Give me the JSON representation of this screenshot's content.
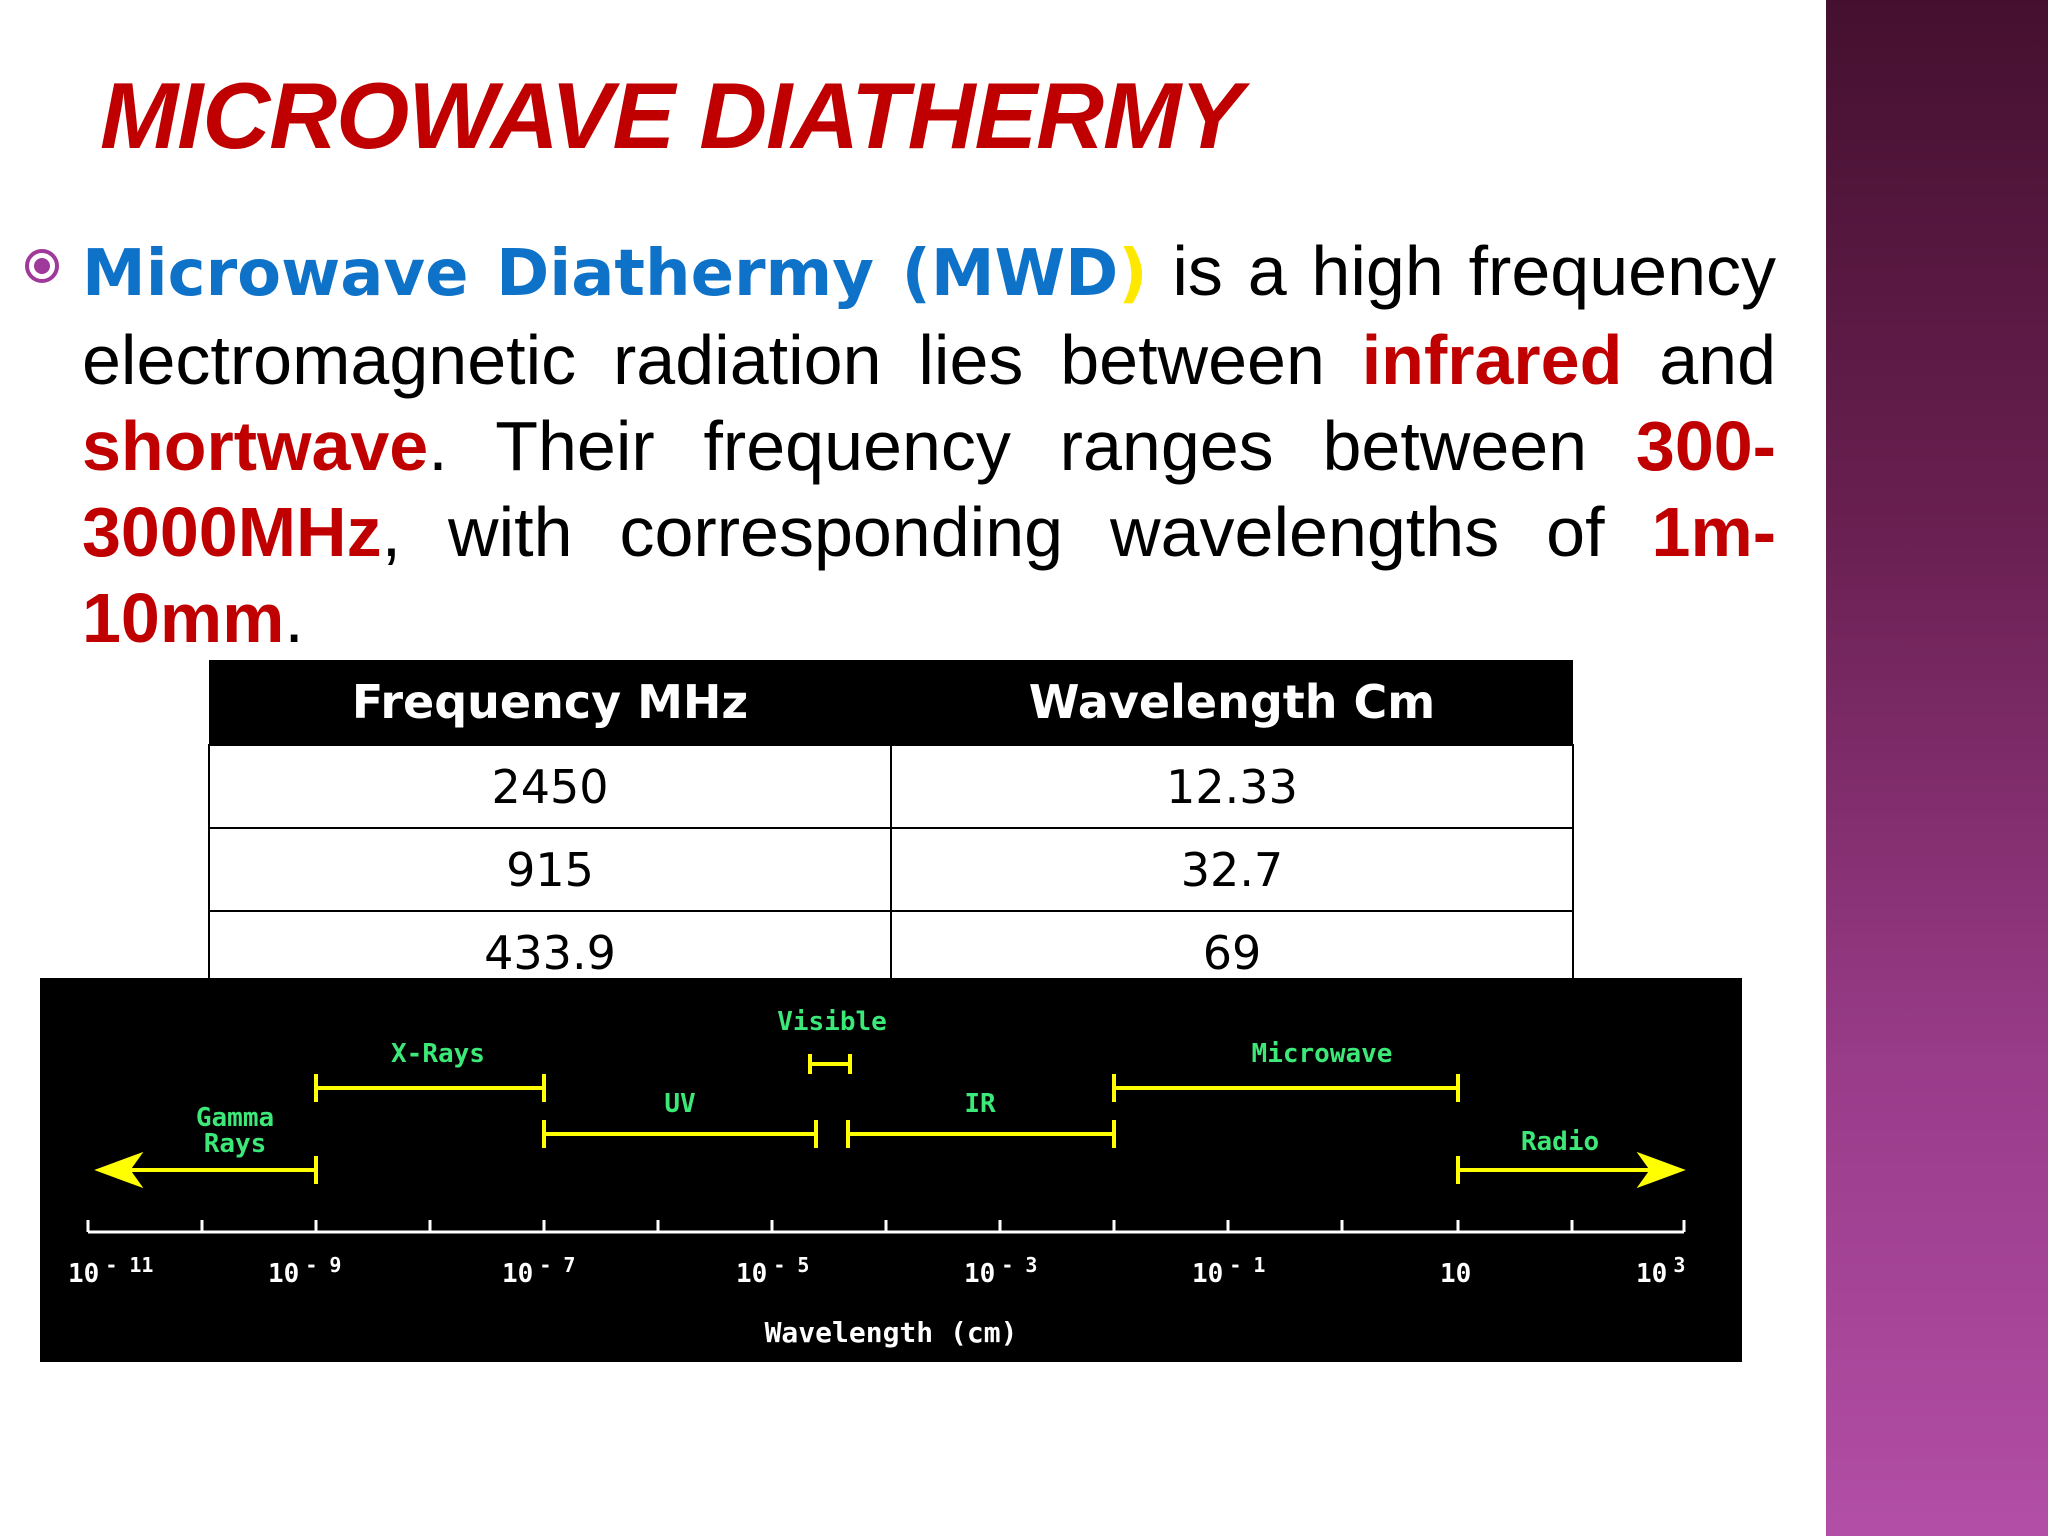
{
  "slide": {
    "title": "MICROWAVE DIATHERMY",
    "paragraph": {
      "term": "Microwave Diathermy (MWD",
      "term_close": ")",
      "t1": " is a high frequency electromagnetic radiation lies between ",
      "infrared": "infrared",
      "t2": " and ",
      "shortwave": "shortwave",
      "t3": ". Their frequency ranges between ",
      "freq_range": "300-3000MHz",
      "t4": ", with corresponding wavelengths of ",
      "wave_range": "1m-10mm",
      "t5": "."
    }
  },
  "table": {
    "headers": [
      "Frequency MHz",
      "Wavelength Cm"
    ],
    "rows": [
      [
        "2450",
        "12.33"
      ],
      [
        "915",
        "32.7"
      ],
      [
        "433.9",
        "69"
      ]
    ]
  },
  "spectrum": {
    "bands": {
      "gamma_line1": "Gamma",
      "gamma_line2": "Rays",
      "xrays": "X-Rays",
      "uv": "UV",
      "visible": "Visible",
      "ir": "IR",
      "microwave": "Microwave",
      "radio": "Radio"
    },
    "axis": {
      "label": "Wavelength (cm)",
      "ticks": [
        {
          "base": "10",
          "exp": "- 11"
        },
        {
          "base": "10",
          "exp": "- 9"
        },
        {
          "base": "10",
          "exp": "- 7"
        },
        {
          "base": "10",
          "exp": "- 5"
        },
        {
          "base": "10",
          "exp": "- 3"
        },
        {
          "base": "10",
          "exp": "- 1"
        },
        {
          "base": "10",
          "exp": ""
        },
        {
          "base": "10",
          "exp": "3"
        }
      ]
    }
  },
  "colors": {
    "title": "#c00000",
    "term": "#0e72c8",
    "highlight": "#c00000",
    "band_label": "#3ce878",
    "band_line": "#ffff00"
  }
}
